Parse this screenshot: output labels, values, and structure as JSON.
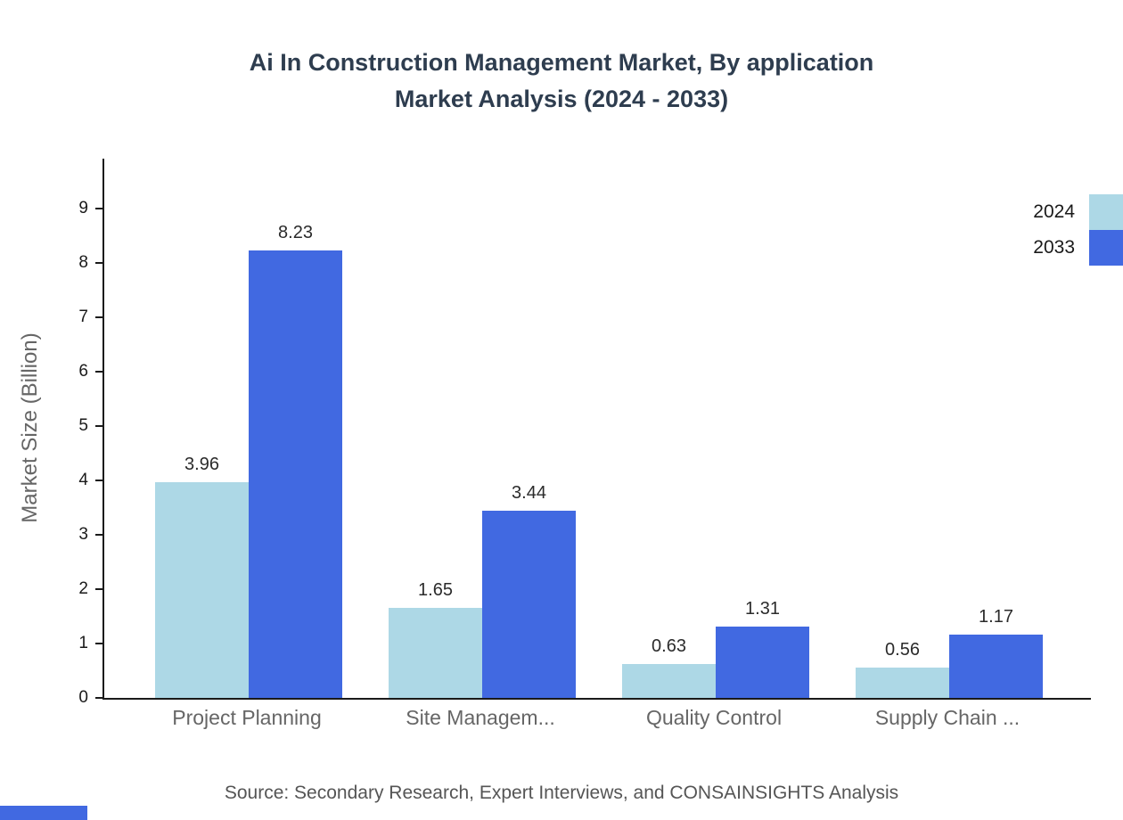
{
  "title": {
    "line1": "Ai In Construction Management Market, By application",
    "line2": "Market Analysis (2024 - 2033)"
  },
  "source": "Source: Secondary Research, Expert Interviews, and CONSAINSIGHTS Analysis",
  "chart_data": {
    "type": "bar",
    "title": "Ai In Construction Management Market, By application Market Analysis (2024 - 2033)",
    "categories": [
      "Project Planning",
      "Site Managem...",
      "Quality Control",
      "Supply Chain ..."
    ],
    "series": [
      {
        "name": "2024",
        "color": "#ADD8E6",
        "values": [
          3.96,
          1.65,
          0.63,
          0.56
        ]
      },
      {
        "name": "2033",
        "color": "#4169E1",
        "values": [
          8.23,
          3.44,
          1.31,
          1.17
        ]
      }
    ],
    "xlabel": "",
    "ylabel": "Market Size (Billion)",
    "ylim": [
      0,
      9.9
    ],
    "yticks": [
      0,
      1,
      2,
      3,
      4,
      5,
      6,
      7,
      8,
      9
    ],
    "legend_position": "top-right",
    "grid": false
  },
  "colors": {
    "series_2024": "#ADD8E6",
    "series_2033": "#4169E1",
    "title_text": "#2e3d4f",
    "axis_text": "#666666",
    "accent_bar": "#4169E1"
  }
}
